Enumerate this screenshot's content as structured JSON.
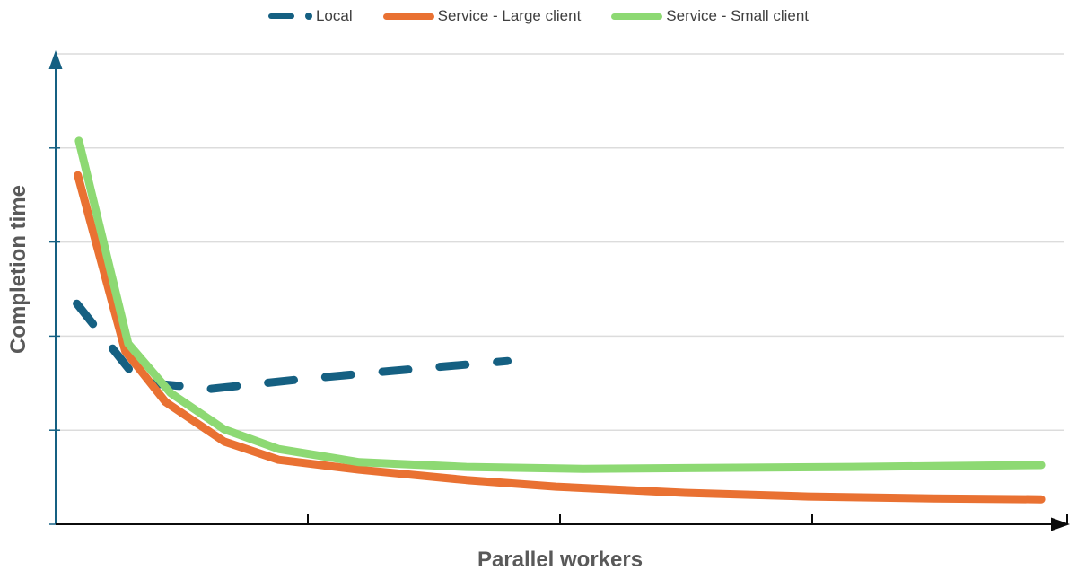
{
  "page": {
    "background": "#FFFFFF",
    "title_color": "#595959",
    "legend_text_color": "#3F3F3F",
    "gridline_color": "#DCDCDC"
  },
  "legend": {
    "position": "top-center",
    "items": [
      {
        "label": "Local",
        "color": "#156082",
        "marker": "dash-dot",
        "line_style": "dashed"
      },
      {
        "label": "Service - Large client",
        "color": "#E97132",
        "marker": "line",
        "line_style": "solid"
      },
      {
        "label": "Service - Small client",
        "color": "#8DD973",
        "marker": "line",
        "line_style": "solid"
      }
    ]
  },
  "chart_data": {
    "type": "line",
    "title": "",
    "xlabel": "Parallel workers",
    "ylabel": "Completion time",
    "units": "relative 0-100 scale on both axes; no numeric tick labels are shown in the chart",
    "x_axis": {
      "range": [
        0,
        100
      ],
      "ticks": [
        25,
        50,
        75,
        100
      ],
      "tick_labels": [],
      "arrow": true,
      "color": "#0B0B0B"
    },
    "y_axis": {
      "range": [
        0,
        100
      ],
      "ticks": [
        20,
        40,
        60,
        80,
        100
      ],
      "tick_labels": [],
      "arrow": true,
      "color": "#156082"
    },
    "grid": {
      "horizontal": true,
      "vertical": false,
      "color": "#DCDCDC"
    },
    "legend_position": "top",
    "series": [
      {
        "name": "Local",
        "color": "#156082",
        "style": "dashed",
        "width": 9,
        "points": [
          [
            2.1,
            46.9
          ],
          [
            8.3,
            30.2
          ],
          [
            15.4,
            28.8
          ],
          [
            23.8,
            30.7
          ],
          [
            32.3,
            32.4
          ],
          [
            44.8,
            34.7
          ]
        ]
      },
      {
        "name": "Service - Large client",
        "color": "#E97132",
        "style": "solid",
        "width": 9,
        "points": [
          [
            2.2,
            74.2
          ],
          [
            6.9,
            36.8
          ],
          [
            10.9,
            26.0
          ],
          [
            16.7,
            17.6
          ],
          [
            22.1,
            13.7
          ],
          [
            30.1,
            11.6
          ],
          [
            40.7,
            9.4
          ],
          [
            49.6,
            8.0
          ],
          [
            62.1,
            6.7
          ],
          [
            74.6,
            5.9
          ],
          [
            87.0,
            5.5
          ],
          [
            97.7,
            5.3
          ]
        ]
      },
      {
        "name": "Service - Small client",
        "color": "#8DD973",
        "style": "solid",
        "width": 9,
        "points": [
          [
            2.3,
            81.5
          ],
          [
            7.2,
            38.4
          ],
          [
            11.4,
            27.9
          ],
          [
            16.7,
            20.2
          ],
          [
            22.1,
            16.0
          ],
          [
            30.1,
            13.2
          ],
          [
            40.7,
            12.2
          ],
          [
            52.3,
            11.8
          ],
          [
            65.7,
            12.0
          ],
          [
            79.0,
            12.2
          ],
          [
            88.8,
            12.4
          ],
          [
            97.7,
            12.6
          ]
        ]
      }
    ]
  }
}
